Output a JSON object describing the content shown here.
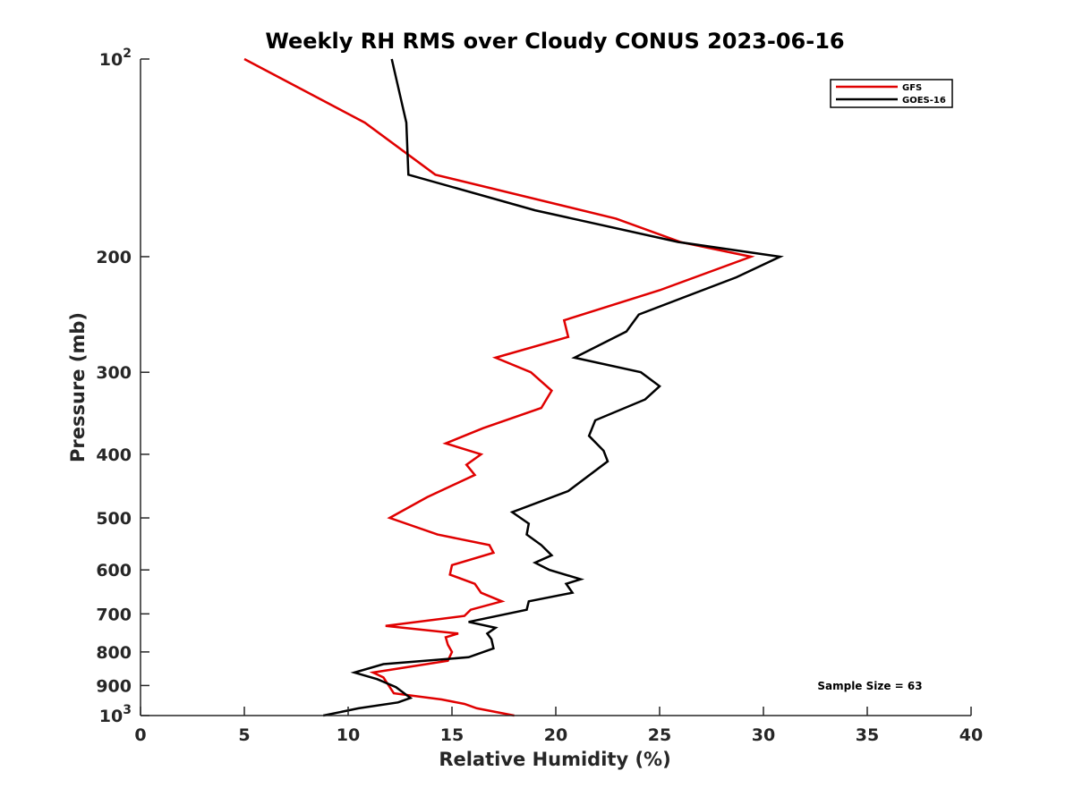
{
  "chart_data": {
    "type": "line",
    "title": "Weekly RH RMS over Cloudy CONUS 2023-06-16",
    "xlabel": "Relative Humidity (%)",
    "ylabel": "Pressure (mb)",
    "xlim": [
      0,
      40
    ],
    "ylim": [
      100,
      1000
    ],
    "y_scale": "log",
    "y_reversed": true,
    "x_ticks": [
      "0",
      "5",
      "10",
      "15",
      "20",
      "25",
      "30",
      "35",
      "40"
    ],
    "y_ticks": [
      {
        "value": 100,
        "base": "10",
        "exp": "2"
      },
      {
        "value": 200,
        "label": "200"
      },
      {
        "value": 300,
        "label": "300"
      },
      {
        "value": 400,
        "label": "400"
      },
      {
        "value": 500,
        "label": "500"
      },
      {
        "value": 600,
        "label": "600"
      },
      {
        "value": 700,
        "label": "700"
      },
      {
        "value": 800,
        "label": "800"
      },
      {
        "value": 900,
        "label": "900"
      },
      {
        "value": 1000,
        "base": "10",
        "exp": "3"
      }
    ],
    "grid": false,
    "legend_position": "top-right",
    "annotation": "Sample Size = 63",
    "series": [
      {
        "name": "GFS",
        "color": "#e00000",
        "points": [
          [
            5.0,
            100
          ],
          [
            10.8,
            125
          ],
          [
            14.2,
            150
          ],
          [
            22.9,
            175
          ],
          [
            26.0,
            190
          ],
          [
            29.4,
            200
          ],
          [
            25.0,
            225
          ],
          [
            20.4,
            250
          ],
          [
            20.6,
            265
          ],
          [
            17.1,
            285
          ],
          [
            18.8,
            300
          ],
          [
            19.8,
            320
          ],
          [
            19.3,
            340
          ],
          [
            16.5,
            365
          ],
          [
            14.7,
            385
          ],
          [
            16.4,
            400
          ],
          [
            15.7,
            415
          ],
          [
            16.1,
            430
          ],
          [
            13.8,
            465
          ],
          [
            12.0,
            500
          ],
          [
            14.3,
            530
          ],
          [
            16.8,
            550
          ],
          [
            17.0,
            565
          ],
          [
            15.0,
            590
          ],
          [
            14.9,
            610
          ],
          [
            16.1,
            630
          ],
          [
            16.4,
            650
          ],
          [
            17.4,
            670
          ],
          [
            15.9,
            690
          ],
          [
            15.6,
            705
          ],
          [
            11.8,
            730
          ],
          [
            15.3,
            750
          ],
          [
            14.7,
            760
          ],
          [
            14.8,
            780
          ],
          [
            15.0,
            800
          ],
          [
            14.8,
            825
          ],
          [
            11.2,
            860
          ],
          [
            11.7,
            875
          ],
          [
            12.2,
            925
          ],
          [
            14.5,
            945
          ],
          [
            15.6,
            960
          ],
          [
            16.2,
            975
          ],
          [
            18.0,
            1000
          ]
        ]
      },
      {
        "name": "GOES-16",
        "color": "#000000",
        "points": [
          [
            12.1,
            100
          ],
          [
            12.8,
            125
          ],
          [
            12.9,
            150
          ],
          [
            19.0,
            170
          ],
          [
            25.9,
            190
          ],
          [
            30.8,
            200
          ],
          [
            28.7,
            215
          ],
          [
            24.0,
            245
          ],
          [
            23.4,
            260
          ],
          [
            20.9,
            285
          ],
          [
            24.1,
            300
          ],
          [
            25.0,
            315
          ],
          [
            24.3,
            330
          ],
          [
            21.9,
            355
          ],
          [
            21.6,
            375
          ],
          [
            22.3,
            395
          ],
          [
            22.5,
            410
          ],
          [
            20.6,
            455
          ],
          [
            17.9,
            490
          ],
          [
            18.7,
            510
          ],
          [
            18.6,
            530
          ],
          [
            19.3,
            550
          ],
          [
            19.8,
            570
          ],
          [
            19.0,
            585
          ],
          [
            19.7,
            600
          ],
          [
            21.2,
            620
          ],
          [
            20.5,
            630
          ],
          [
            20.8,
            650
          ],
          [
            18.7,
            670
          ],
          [
            18.6,
            690
          ],
          [
            15.8,
            720
          ],
          [
            17.1,
            735
          ],
          [
            16.7,
            750
          ],
          [
            16.9,
            765
          ],
          [
            17.0,
            790
          ],
          [
            15.8,
            815
          ],
          [
            11.7,
            835
          ],
          [
            10.3,
            860
          ],
          [
            11.4,
            880
          ],
          [
            12.3,
            905
          ],
          [
            13.0,
            940
          ],
          [
            12.4,
            955
          ],
          [
            10.5,
            975
          ],
          [
            8.8,
            1000
          ]
        ]
      }
    ]
  }
}
